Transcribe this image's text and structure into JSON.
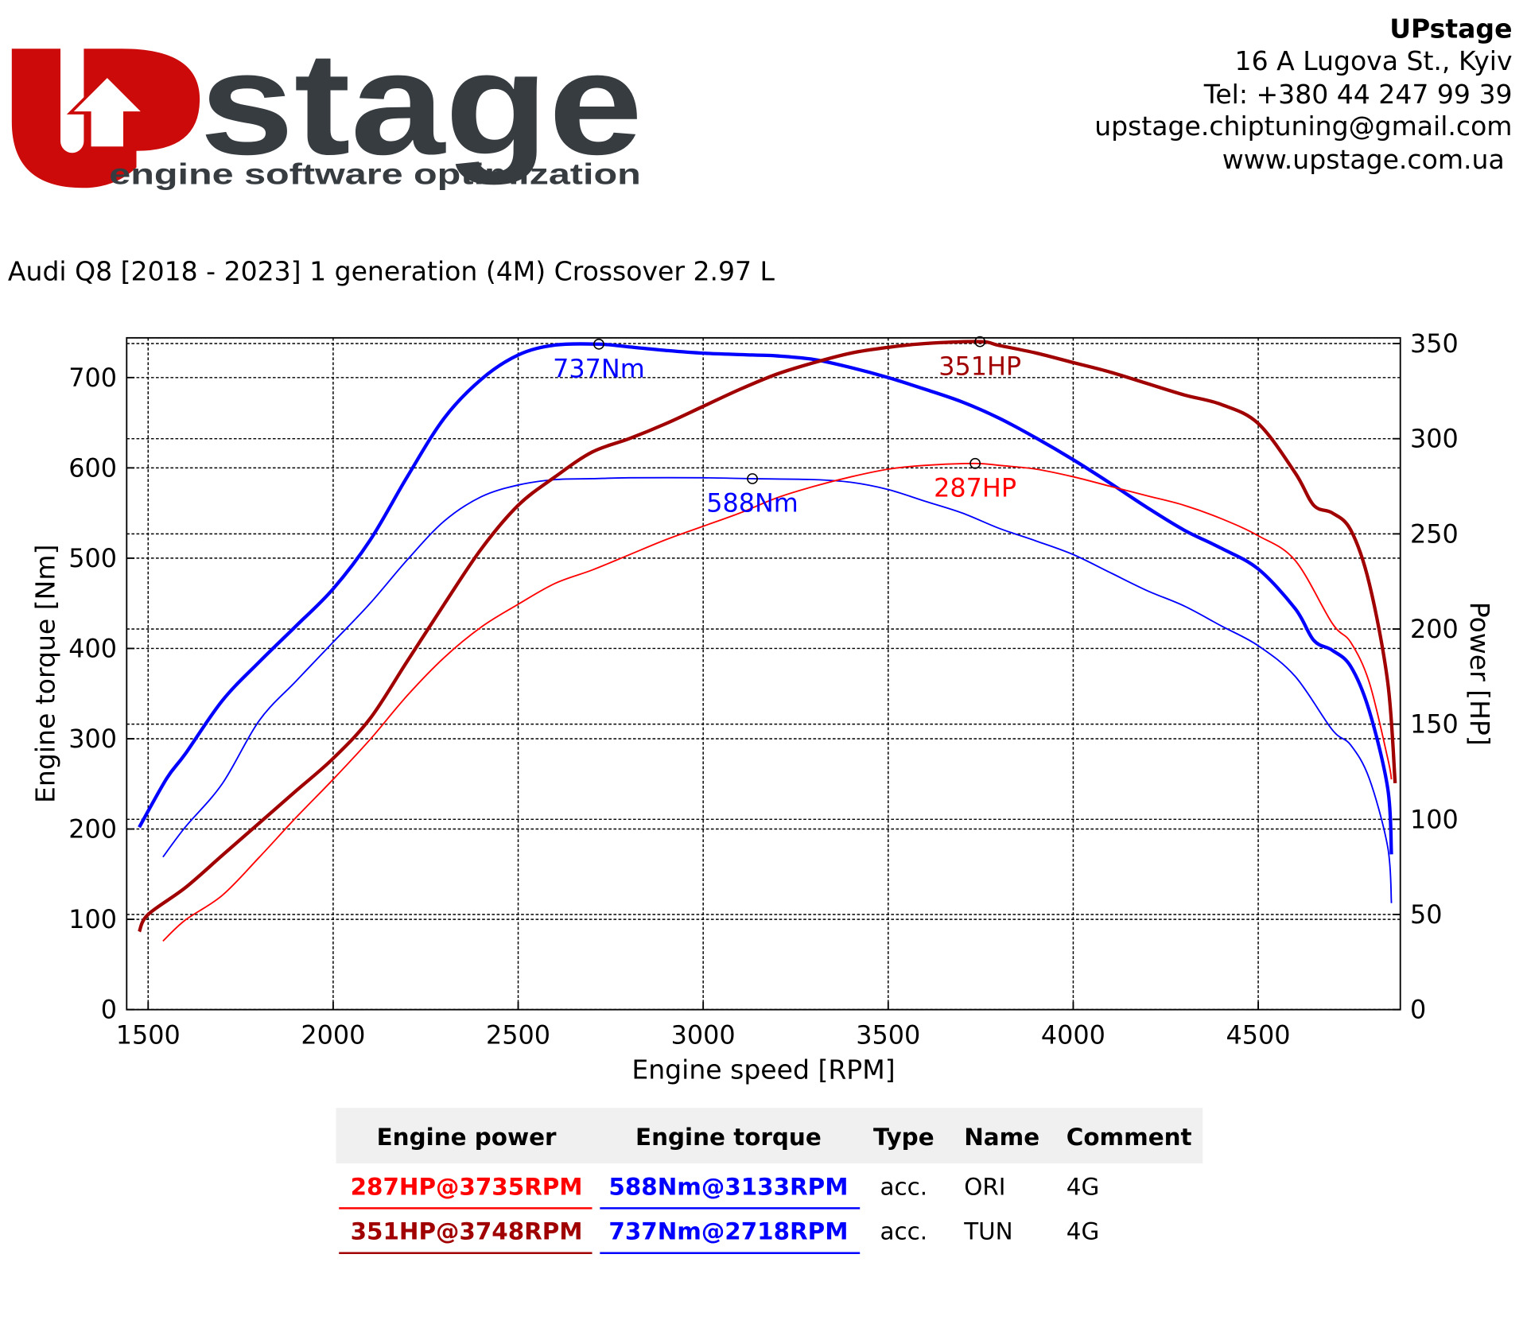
{
  "header": {
    "logo_text": "stage",
    "logo_tagline": "engine software optimization",
    "company": "UPstage",
    "address": "16 A Lugova St., Kyiv",
    "phone": "Tel: +380 44 247 99 39",
    "email": "upstage.chiptuning@gmail.com",
    "website": "www.upstage.com.ua"
  },
  "chart_data": {
    "type": "line",
    "title": "Audi Q8 [2018 - 2023] 1 generation (4M) Crossover 2.97 L",
    "x_label": "Engine speed [RPM]",
    "y_label": "Engine torque [Nm]",
    "y2_label": "Power [HP]",
    "xlim": [
      1442,
      4884
    ],
    "ylim": [
      0,
      744
    ],
    "y2lim": [
      0,
      353
    ],
    "xticks": [
      1500,
      2000,
      2500,
      3000,
      3500,
      4000,
      4500
    ],
    "yticks": [
      0,
      100,
      200,
      300,
      400,
      500,
      600,
      700
    ],
    "y2ticks": [
      0,
      50,
      100,
      150,
      200,
      250,
      300,
      350
    ],
    "grid": true,
    "series": [
      {
        "name": "ORI torque",
        "color": "#0000ff",
        "width": 1.5,
        "axis": "y",
        "x": [
          1540,
          1600,
          1700,
          1800,
          1900,
          2000,
          2100,
          2200,
          2300,
          2400,
          2500,
          2600,
          2700,
          2800,
          3000,
          3133,
          3300,
          3400,
          3500,
          3600,
          3700,
          3800,
          3900,
          4000,
          4100,
          4200,
          4300,
          4400,
          4500,
          4600,
          4700,
          4750,
          4800,
          4850,
          4860
        ],
        "values": [
          169,
          202,
          250,
          320,
          364,
          407,
          450,
          498,
          541,
          568,
          581,
          587,
          588,
          589,
          589,
          588,
          587,
          584,
          576,
          563,
          550,
          533,
          519,
          504,
          484,
          464,
          447,
          425,
          403,
          369,
          310,
          293,
          256,
          180,
          118
        ]
      },
      {
        "name": "TUN torque",
        "color": "#0000ff",
        "width": 3.5,
        "axis": "y",
        "x": [
          1476,
          1550,
          1600,
          1700,
          1800,
          1900,
          2000,
          2100,
          2200,
          2300,
          2400,
          2500,
          2600,
          2718,
          2800,
          2900,
          3000,
          3133,
          3200,
          3300,
          3400,
          3500,
          3600,
          3700,
          3800,
          3900,
          4000,
          4100,
          4200,
          4300,
          4400,
          4500,
          4600,
          4650,
          4700,
          4750,
          4800,
          4850,
          4860
        ],
        "values": [
          202,
          256,
          283,
          342,
          385,
          425,
          466,
          520,
          590,
          655,
          698,
          725,
          736,
          737,
          734,
          730,
          727,
          725,
          724,
          720,
          711,
          700,
          687,
          673,
          655,
          633,
          609,
          583,
          556,
          531,
          511,
          488,
          444,
          409,
          398,
          380,
          331,
          245,
          172
        ]
      },
      {
        "name": "ORI power",
        "color": "#ff0000",
        "width": 1.5,
        "axis": "y2",
        "x": [
          1540,
          1600,
          1700,
          1800,
          1900,
          2000,
          2100,
          2200,
          2300,
          2400,
          2500,
          2600,
          2700,
          2800,
          2900,
          3000,
          3100,
          3200,
          3300,
          3400,
          3500,
          3600,
          3735,
          3800,
          3900,
          4000,
          4100,
          4200,
          4300,
          4400,
          4500,
          4600,
          4700,
          4750,
          4800,
          4850,
          4860
        ],
        "values": [
          36,
          47,
          60,
          80,
          101,
          121,
          142,
          165,
          185,
          201,
          213,
          224,
          231,
          239,
          247,
          254,
          261,
          269,
          275,
          280,
          284,
          286,
          287,
          286,
          284,
          280,
          275,
          270,
          265,
          258,
          249,
          236,
          203,
          193,
          172,
          132,
          121
        ]
      },
      {
        "name": "TUN power",
        "color": "#a00000",
        "width": 3.5,
        "axis": "y2",
        "x": [
          1476,
          1500,
          1600,
          1700,
          1800,
          1900,
          2000,
          2100,
          2200,
          2300,
          2400,
          2500,
          2600,
          2700,
          2800,
          2900,
          3000,
          3100,
          3200,
          3300,
          3400,
          3500,
          3600,
          3748,
          3800,
          3900,
          4000,
          4100,
          4200,
          4300,
          4400,
          4500,
          4600,
          4650,
          4700,
          4750,
          4800,
          4850,
          4870
        ],
        "values": [
          41,
          50,
          64,
          81,
          98,
          115,
          132,
          153,
          183,
          213,
          242,
          265,
          280,
          293,
          300,
          308,
          317,
          326,
          334,
          340,
          345,
          348,
          350,
          351,
          349,
          345,
          340,
          335,
          329,
          323,
          318,
          308,
          282,
          265,
          261,
          252,
          224,
          172,
          119
        ]
      }
    ],
    "annotations": [
      {
        "label": "737Nm",
        "x": 2718,
        "y": 737,
        "axis": "y",
        "color": "#0000ff"
      },
      {
        "label": "588Nm",
        "x": 3133,
        "y": 588,
        "axis": "y",
        "color": "#0000ff"
      },
      {
        "label": "351HP",
        "x": 3748,
        "y": 351,
        "axis": "y2",
        "color": "#a00000"
      },
      {
        "label": "287HP",
        "x": 3735,
        "y": 287,
        "axis": "y2",
        "color": "#ff0000"
      }
    ]
  },
  "table": {
    "columns": [
      "Engine power",
      "Engine torque",
      "Type",
      "Name",
      "Comment"
    ],
    "rows": [
      [
        "287HP@3735RPM",
        "588Nm@3133RPM",
        "acc.",
        "ORI",
        "4G"
      ],
      [
        "351HP@3748RPM",
        "737Nm@2718RPM",
        "acc.",
        "TUN",
        "4G"
      ]
    ],
    "colors": [
      [
        "#ff0000",
        "#0000ff"
      ],
      [
        "#a00000",
        "#0000ff"
      ]
    ]
  }
}
